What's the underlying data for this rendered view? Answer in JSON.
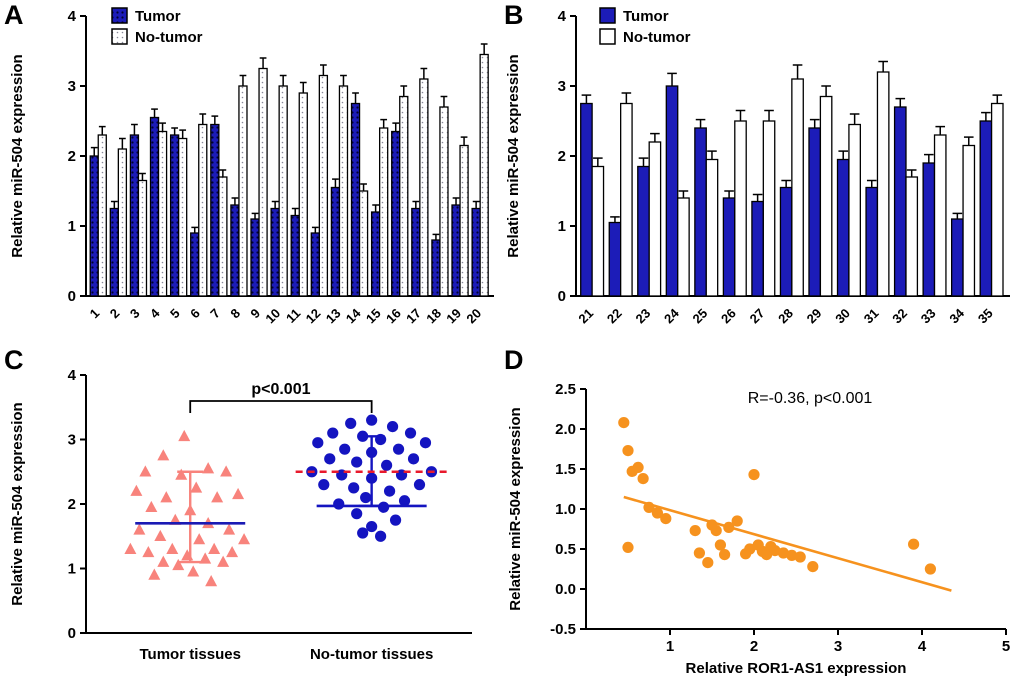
{
  "figure_title": "",
  "colors": {
    "tumor_blue": "#1C1CB8",
    "no_tumor_white": "#FFFFFF",
    "triangle_salmon": "#F8837C",
    "circle_blue": "#1414C0",
    "scatter_orange": "#F6921E",
    "reference_red": "#E8192C"
  },
  "chart_data": [
    {
      "panel": "A",
      "type": "bar",
      "title": "",
      "xlabel": "",
      "ylabel": "Relative miR-504 expression",
      "ylim": [
        0,
        4
      ],
      "yticks": [
        0,
        1,
        2,
        3,
        4
      ],
      "grid": false,
      "legend": [
        "Tumor",
        "No-tumor"
      ],
      "legend_position": "top-left",
      "style": {
        "patterned": true,
        "tumor_fill": "#1C1CB8",
        "no_tumor_fill": "#FFFFFF",
        "pattern_dot_dark": "#000030",
        "pattern_dot_light": "#8A8A9A"
      },
      "categories": [
        "1",
        "2",
        "3",
        "4",
        "5",
        "6",
        "7",
        "8",
        "9",
        "10",
        "11",
        "12",
        "13",
        "14",
        "15",
        "16",
        "17",
        "18",
        "19",
        "20"
      ],
      "series": [
        {
          "name": "Tumor",
          "values": [
            2.0,
            1.25,
            2.3,
            2.55,
            2.3,
            0.9,
            2.45,
            1.3,
            1.1,
            1.25,
            1.15,
            0.9,
            1.55,
            2.75,
            1.2,
            2.35,
            1.25,
            0.8,
            1.3,
            1.25
          ],
          "errors": [
            0.12,
            0.1,
            0.15,
            0.12,
            0.1,
            0.08,
            0.12,
            0.1,
            0.08,
            0.1,
            0.1,
            0.08,
            0.12,
            0.15,
            0.1,
            0.12,
            0.1,
            0.08,
            0.1,
            0.1
          ]
        },
        {
          "name": "No-tumor",
          "values": [
            2.3,
            2.1,
            1.65,
            2.35,
            2.25,
            2.45,
            1.7,
            3.0,
            3.25,
            3.0,
            2.9,
            3.15,
            3.0,
            1.5,
            2.4,
            2.85,
            3.1,
            2.7,
            2.15,
            3.45
          ],
          "errors": [
            0.12,
            0.15,
            0.1,
            0.12,
            0.12,
            0.15,
            0.1,
            0.15,
            0.15,
            0.15,
            0.15,
            0.15,
            0.15,
            0.1,
            0.12,
            0.15,
            0.15,
            0.15,
            0.12,
            0.15
          ]
        }
      ]
    },
    {
      "panel": "B",
      "type": "bar",
      "title": "",
      "xlabel": "",
      "ylabel": "Relative miR-504 expression",
      "ylim": [
        0,
        4
      ],
      "yticks": [
        0,
        1,
        2,
        3,
        4
      ],
      "grid": false,
      "legend": [
        "Tumor",
        "No-tumor"
      ],
      "legend_position": "top-left",
      "style": {
        "patterned": false,
        "tumor_fill": "#1C1CB8",
        "no_tumor_fill": "#FFFFFF",
        "pattern_dot_dark": "#000030",
        "pattern_dot_light": "#8A8A9A"
      },
      "categories": [
        "21",
        "22",
        "23",
        "24",
        "25",
        "26",
        "27",
        "28",
        "29",
        "30",
        "31",
        "32",
        "33",
        "34",
        "35"
      ],
      "series": [
        {
          "name": "Tumor",
          "values": [
            2.75,
            1.05,
            1.85,
            3.0,
            2.4,
            1.4,
            1.35,
            1.55,
            2.4,
            1.95,
            1.55,
            2.7,
            1.9,
            1.1,
            2.5
          ],
          "errors": [
            0.12,
            0.08,
            0.12,
            0.18,
            0.12,
            0.1,
            0.1,
            0.1,
            0.12,
            0.12,
            0.1,
            0.12,
            0.12,
            0.08,
            0.12
          ]
        },
        {
          "name": "No-tumor",
          "values": [
            1.85,
            2.75,
            2.2,
            1.4,
            1.95,
            2.5,
            2.5,
            3.1,
            2.85,
            2.45,
            3.2,
            1.7,
            2.3,
            2.15,
            2.75
          ],
          "errors": [
            0.12,
            0.15,
            0.12,
            0.1,
            0.12,
            0.15,
            0.15,
            0.2,
            0.15,
            0.15,
            0.15,
            0.1,
            0.12,
            0.12,
            0.12
          ]
        }
      ]
    },
    {
      "panel": "C",
      "type": "scatter",
      "title": "",
      "xlabel": "",
      "ylabel": "Relative miR-504 expression",
      "ylim": [
        0,
        4
      ],
      "yticks": [
        0,
        1,
        2,
        3,
        4
      ],
      "annotation": "p<0.001",
      "reference_line": {
        "y": 2.5,
        "color": "#E8192C",
        "style": "dashed"
      },
      "groups": [
        {
          "name": "Tumor tissues",
          "marker": "triangle",
          "color": "#F8837C",
          "mean": 1.7,
          "mean_color": "#1A1AB4",
          "whisker_low": 1.1,
          "whisker_high": 2.5,
          "whisker_color": "#F8837C",
          "points": [
            [
              -0.1,
              3.05
            ],
            [
              -0.45,
              2.75
            ],
            [
              0.3,
              2.55
            ],
            [
              -0.75,
              2.5
            ],
            [
              0.6,
              2.5
            ],
            [
              -0.15,
              2.45
            ],
            [
              -0.9,
              2.2
            ],
            [
              0.1,
              2.25
            ],
            [
              -0.4,
              2.1
            ],
            [
              0.45,
              2.1
            ],
            [
              0.8,
              2.15
            ],
            [
              -0.65,
              1.95
            ],
            [
              0.0,
              1.9
            ],
            [
              -0.25,
              1.75
            ],
            [
              0.3,
              1.7
            ],
            [
              -0.85,
              1.6
            ],
            [
              0.65,
              1.6
            ],
            [
              -0.5,
              1.5
            ],
            [
              0.15,
              1.45
            ],
            [
              0.9,
              1.45
            ],
            [
              -1.0,
              1.3
            ],
            [
              -0.3,
              1.3
            ],
            [
              0.4,
              1.3
            ],
            [
              -0.7,
              1.25
            ],
            [
              0.7,
              1.25
            ],
            [
              -0.05,
              1.2
            ],
            [
              0.25,
              1.15
            ],
            [
              -0.45,
              1.1
            ],
            [
              0.55,
              1.1
            ],
            [
              -0.2,
              1.05
            ],
            [
              0.05,
              0.95
            ],
            [
              -0.6,
              0.9
            ],
            [
              0.35,
              0.8
            ]
          ]
        },
        {
          "name": "No-tumor tissues",
          "marker": "circle",
          "color": "#1414C0",
          "mean": 1.97,
          "mean_color": "#1414C0",
          "whisker_low": 1.97,
          "whisker_high": 3.05,
          "whisker_color": "#1414C0",
          "points": [
            [
              0.0,
              3.3
            ],
            [
              -0.35,
              3.25
            ],
            [
              0.35,
              3.2
            ],
            [
              -0.65,
              3.1
            ],
            [
              0.65,
              3.1
            ],
            [
              -0.15,
              3.05
            ],
            [
              0.15,
              3.0
            ],
            [
              -0.9,
              2.95
            ],
            [
              0.9,
              2.95
            ],
            [
              -0.45,
              2.85
            ],
            [
              0.45,
              2.85
            ],
            [
              0.0,
              2.8
            ],
            [
              -0.7,
              2.7
            ],
            [
              0.7,
              2.7
            ],
            [
              -0.25,
              2.65
            ],
            [
              0.25,
              2.6
            ],
            [
              -1.0,
              2.5
            ],
            [
              1.0,
              2.5
            ],
            [
              -0.5,
              2.45
            ],
            [
              0.5,
              2.45
            ],
            [
              0.0,
              2.4
            ],
            [
              -0.8,
              2.3
            ],
            [
              0.8,
              2.3
            ],
            [
              -0.3,
              2.25
            ],
            [
              0.3,
              2.2
            ],
            [
              -0.1,
              2.1
            ],
            [
              0.55,
              2.05
            ],
            [
              -0.55,
              2.0
            ],
            [
              0.2,
              1.95
            ],
            [
              -0.25,
              1.85
            ],
            [
              0.4,
              1.75
            ],
            [
              0.0,
              1.65
            ],
            [
              -0.15,
              1.55
            ],
            [
              0.15,
              1.5
            ]
          ]
        }
      ]
    },
    {
      "panel": "D",
      "type": "scatter",
      "title": "",
      "xlabel": "Relative ROR1-AS1 expression",
      "ylabel": "Relative miR-504 expression",
      "xlim": [
        0,
        5
      ],
      "ylim": [
        -0.5,
        2.5
      ],
      "xticks": [
        1,
        2,
        3,
        4,
        5
      ],
      "xtick_labels": [
        "1",
        "2",
        "3",
        "4",
        "5"
      ],
      "yticks": [
        -0.5,
        0,
        0.5,
        1,
        1.5,
        2,
        2.5
      ],
      "ytick_labels": [
        "-0.5",
        "0.0",
        "0.5",
        "1.0",
        "1.5",
        "2.0",
        "2.5"
      ],
      "annotation": "R=-0.36, p<0.001",
      "point_color": "#F6921E",
      "trendline": {
        "x1": 0.45,
        "y1": 1.15,
        "x2": 4.35,
        "y2": -0.02,
        "color": "#F6921E"
      },
      "points": [
        [
          0.45,
          2.08
        ],
        [
          0.5,
          1.73
        ],
        [
          0.55,
          1.47
        ],
        [
          0.62,
          1.52
        ],
        [
          0.5,
          0.52
        ],
        [
          0.68,
          1.38
        ],
        [
          0.75,
          1.02
        ],
        [
          0.85,
          0.95
        ],
        [
          0.95,
          0.88
        ],
        [
          1.3,
          0.73
        ],
        [
          1.35,
          0.45
        ],
        [
          1.45,
          0.33
        ],
        [
          1.5,
          0.8
        ],
        [
          1.55,
          0.73
        ],
        [
          1.6,
          0.55
        ],
        [
          1.65,
          0.43
        ],
        [
          1.7,
          0.77
        ],
        [
          1.8,
          0.85
        ],
        [
          1.9,
          0.44
        ],
        [
          1.95,
          0.5
        ],
        [
          2.0,
          1.43
        ],
        [
          2.05,
          0.55
        ],
        [
          2.1,
          0.47
        ],
        [
          2.15,
          0.43
        ],
        [
          2.2,
          0.53
        ],
        [
          2.25,
          0.48
        ],
        [
          2.35,
          0.45
        ],
        [
          2.45,
          0.42
        ],
        [
          2.55,
          0.4
        ],
        [
          2.7,
          0.28
        ],
        [
          3.9,
          0.56
        ],
        [
          4.1,
          0.25
        ]
      ]
    }
  ]
}
